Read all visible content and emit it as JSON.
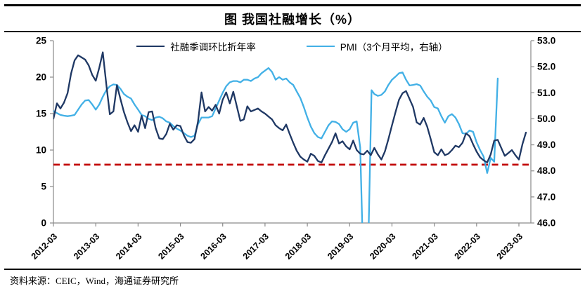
{
  "title": "图 我国社融增长（%）",
  "source": "资料来源：CEIC，Wind，海通证券研究所",
  "colors": {
    "sf_line": "#1f3864",
    "pmi_line": "#42b0e6",
    "reference_line": "#c00000",
    "axis": "#8a8a8a",
    "text": "#000000"
  },
  "legend": [
    {
      "label": "社融季调环比折年率",
      "color": "#1f3864"
    },
    {
      "label": "PMI（3个月平均，右轴）",
      "color": "#42b0e6"
    }
  ],
  "chart_data": {
    "type": "line",
    "title": "图 我国社融增长（%）",
    "x_unit": "months since 2012-03",
    "x_tick_labels": [
      "2012-03",
      "2013-03",
      "2014-03",
      "2015-03",
      "2016-03",
      "2017-03",
      "2018-03",
      "2019-03",
      "2020-03",
      "2021-03",
      "2022-03",
      "2023-03"
    ],
    "x_tick_interval_months": 12,
    "left_axis": {
      "min": 0,
      "max": 25,
      "ticks": [
        0,
        5,
        10,
        15,
        20,
        25
      ],
      "series": "社融季调环比折年率"
    },
    "right_axis": {
      "min": 46,
      "max": 53,
      "ticks": [
        46,
        47,
        48,
        49,
        50,
        51,
        52,
        53
      ],
      "decimals": 1,
      "series": "PMI（3个月平均，右轴）"
    },
    "grid": false,
    "legend_position": "top",
    "reference_line": {
      "axis": "left",
      "value": 8.0,
      "style": "dashed",
      "color": "#c00000"
    },
    "series": [
      {
        "name": "社融季调环比折年率",
        "axis": "left",
        "color": "#1f3864",
        "points": [
          [
            0,
            14.3
          ],
          [
            1,
            16.4
          ],
          [
            2,
            15.7
          ],
          [
            3,
            16.5
          ],
          [
            4,
            17.8
          ],
          [
            5,
            20.5
          ],
          [
            6,
            22.3
          ],
          [
            7,
            23.0
          ],
          [
            8,
            22.7
          ],
          [
            9,
            22.4
          ],
          [
            10,
            21.6
          ],
          [
            11,
            20.3
          ],
          [
            12,
            19.5
          ],
          [
            13,
            21.3
          ],
          [
            14,
            23.4
          ],
          [
            15,
            19.0
          ],
          [
            16,
            14.9
          ],
          [
            17,
            15.3
          ],
          [
            18,
            18.9
          ],
          [
            19,
            17.0
          ],
          [
            20,
            15.2
          ],
          [
            21,
            13.8
          ],
          [
            22,
            12.6
          ],
          [
            23,
            13.4
          ],
          [
            24,
            12.5
          ],
          [
            25,
            14.7
          ],
          [
            26,
            13.0
          ],
          [
            27,
            15.2
          ],
          [
            28,
            15.3
          ],
          [
            29,
            13.0
          ],
          [
            30,
            11.6
          ],
          [
            31,
            11.5
          ],
          [
            32,
            12.2
          ],
          [
            33,
            13.6
          ],
          [
            34,
            12.8
          ],
          [
            35,
            13.4
          ],
          [
            36,
            13.3
          ],
          [
            37,
            12.0
          ],
          [
            38,
            11.1
          ],
          [
            39,
            11.0
          ],
          [
            40,
            11.5
          ],
          [
            41,
            13.9
          ],
          [
            42,
            17.9
          ],
          [
            43,
            15.3
          ],
          [
            44,
            15.9
          ],
          [
            45,
            15.4
          ],
          [
            46,
            16.2
          ],
          [
            47,
            15.0
          ],
          [
            48,
            16.9
          ],
          [
            49,
            17.9
          ],
          [
            50,
            16.4
          ],
          [
            51,
            18.0
          ],
          [
            52,
            16.0
          ],
          [
            53,
            14.0
          ],
          [
            54,
            14.2
          ],
          [
            55,
            16.0
          ],
          [
            56,
            15.3
          ],
          [
            57,
            15.5
          ],
          [
            58,
            15.7
          ],
          [
            59,
            15.3
          ],
          [
            60,
            15.0
          ],
          [
            61,
            14.6
          ],
          [
            62,
            14.2
          ],
          [
            63,
            13.4
          ],
          [
            64,
            13.0
          ],
          [
            65,
            12.7
          ],
          [
            66,
            13.5
          ],
          [
            67,
            12.2
          ],
          [
            68,
            11.0
          ],
          [
            69,
            9.9
          ],
          [
            70,
            9.1
          ],
          [
            71,
            8.7
          ],
          [
            72,
            8.4
          ],
          [
            73,
            9.5
          ],
          [
            74,
            9.2
          ],
          [
            75,
            8.5
          ],
          [
            76,
            8.3
          ],
          [
            77,
            9.3
          ],
          [
            78,
            10.2
          ],
          [
            79,
            11.1
          ],
          [
            80,
            12.3
          ],
          [
            81,
            10.9
          ],
          [
            82,
            11.2
          ],
          [
            83,
            10.5
          ],
          [
            84,
            10.1
          ],
          [
            85,
            11.3
          ],
          [
            86,
            10.0
          ],
          [
            87,
            9.5
          ],
          [
            88,
            9.4
          ],
          [
            89,
            9.9
          ],
          [
            90,
            9.3
          ],
          [
            91,
            10.3
          ],
          [
            92,
            9.4
          ],
          [
            93,
            8.7
          ],
          [
            94,
            9.8
          ],
          [
            95,
            11.5
          ],
          [
            96,
            13.4
          ],
          [
            97,
            15.2
          ],
          [
            98,
            16.9
          ],
          [
            99,
            17.8
          ],
          [
            100,
            18.1
          ],
          [
            101,
            17.0
          ],
          [
            102,
            15.9
          ],
          [
            103,
            13.8
          ],
          [
            104,
            13.5
          ],
          [
            105,
            14.4
          ],
          [
            106,
            13.2
          ],
          [
            107,
            11.5
          ],
          [
            108,
            9.7
          ],
          [
            109,
            9.3
          ],
          [
            110,
            10.1
          ],
          [
            111,
            9.3
          ],
          [
            112,
            9.5
          ],
          [
            113,
            10.0
          ],
          [
            114,
            10.6
          ],
          [
            115,
            10.4
          ],
          [
            116,
            11.0
          ],
          [
            117,
            12.3
          ],
          [
            118,
            11.9
          ],
          [
            119,
            10.8
          ],
          [
            120,
            9.8
          ],
          [
            121,
            9.0
          ],
          [
            122,
            8.6
          ],
          [
            123,
            8.3
          ],
          [
            124,
            9.4
          ],
          [
            125,
            11.3
          ],
          [
            126,
            11.4
          ],
          [
            127,
            10.3
          ],
          [
            128,
            9.2
          ],
          [
            129,
            9.6
          ],
          [
            130,
            10.0
          ],
          [
            131,
            9.3
          ],
          [
            132,
            8.7
          ],
          [
            133,
            10.8
          ],
          [
            134,
            12.4
          ]
        ]
      },
      {
        "name": "PMI（3个月平均，右轴）",
        "axis": "right",
        "color": "#42b0e6",
        "points": [
          [
            0,
            50.3
          ],
          [
            1,
            50.22
          ],
          [
            2,
            50.15
          ],
          [
            3,
            50.12
          ],
          [
            4,
            50.1
          ],
          [
            5,
            50.12
          ],
          [
            6,
            50.15
          ],
          [
            7,
            50.35
          ],
          [
            8,
            50.55
          ],
          [
            9,
            50.7
          ],
          [
            10,
            50.72
          ],
          [
            11,
            50.55
          ],
          [
            12,
            50.35
          ],
          [
            13,
            50.55
          ],
          [
            14,
            50.85
          ],
          [
            15,
            51.1
          ],
          [
            16,
            51.25
          ],
          [
            17,
            51.32
          ],
          [
            18,
            51.3
          ],
          [
            19,
            51.15
          ],
          [
            20,
            50.95
          ],
          [
            21,
            50.85
          ],
          [
            22,
            50.78
          ],
          [
            23,
            50.55
          ],
          [
            24,
            50.35
          ],
          [
            25,
            50.15
          ],
          [
            26,
            50.1
          ],
          [
            27,
            50.0
          ],
          [
            28,
            49.95
          ],
          [
            29,
            50.05
          ],
          [
            30,
            50.08
          ],
          [
            31,
            50.02
          ],
          [
            32,
            49.9
          ],
          [
            33,
            49.85
          ],
          [
            34,
            49.72
          ],
          [
            35,
            49.62
          ],
          [
            36,
            49.55
          ],
          [
            37,
            49.45
          ],
          [
            38,
            49.35
          ],
          [
            39,
            49.3
          ],
          [
            40,
            49.35
          ],
          [
            41,
            49.8
          ],
          [
            42,
            50.05
          ],
          [
            43,
            50.05
          ],
          [
            44,
            50.05
          ],
          [
            45,
            50.1
          ],
          [
            46,
            50.4
          ],
          [
            47,
            50.7
          ],
          [
            48,
            51.0
          ],
          [
            49,
            51.25
          ],
          [
            50,
            51.4
          ],
          [
            51,
            51.45
          ],
          [
            52,
            51.45
          ],
          [
            53,
            51.4
          ],
          [
            54,
            51.5
          ],
          [
            55,
            51.5
          ],
          [
            56,
            51.45
          ],
          [
            57,
            51.55
          ],
          [
            58,
            51.6
          ],
          [
            59,
            51.75
          ],
          [
            60,
            51.85
          ],
          [
            61,
            51.95
          ],
          [
            62,
            51.8
          ],
          [
            63,
            51.5
          ],
          [
            64,
            51.6
          ],
          [
            65,
            51.5
          ],
          [
            66,
            51.55
          ],
          [
            67,
            51.4
          ],
          [
            68,
            51.3
          ],
          [
            69,
            51.05
          ],
          [
            70,
            50.8
          ],
          [
            71,
            50.45
          ],
          [
            72,
            50.05
          ],
          [
            73,
            49.7
          ],
          [
            74,
            49.45
          ],
          [
            75,
            49.3
          ],
          [
            76,
            49.25
          ],
          [
            77,
            49.5
          ],
          [
            78,
            49.75
          ],
          [
            79,
            49.9
          ],
          [
            80,
            49.88
          ],
          [
            81,
            49.8
          ],
          [
            82,
            49.6
          ],
          [
            83,
            49.5
          ],
          [
            84,
            49.6
          ],
          [
            85,
            49.85
          ],
          [
            86,
            49.9
          ],
          [
            87,
            48.9
          ],
          [
            87.8,
            44.8
          ],
          [
            88.6,
            45.6
          ],
          [
            89.2,
            44.6
          ],
          [
            90.2,
            51.1
          ],
          [
            91,
            50.95
          ],
          [
            92,
            50.88
          ],
          [
            93,
            50.92
          ],
          [
            94,
            51.05
          ],
          [
            95,
            51.3
          ],
          [
            96,
            51.5
          ],
          [
            97,
            51.62
          ],
          [
            98,
            51.75
          ],
          [
            99,
            51.78
          ],
          [
            100,
            51.5
          ],
          [
            101,
            51.28
          ],
          [
            102,
            51.3
          ],
          [
            103,
            51.33
          ],
          [
            104,
            51.28
          ],
          [
            105,
            51.05
          ],
          [
            106,
            50.85
          ],
          [
            107,
            50.7
          ],
          [
            108,
            50.45
          ],
          [
            109,
            50.4
          ],
          [
            110,
            50.1
          ],
          [
            111,
            49.85
          ],
          [
            112,
            50.1
          ],
          [
            113,
            50.18
          ],
          [
            114,
            50.05
          ],
          [
            115,
            49.8
          ],
          [
            116,
            49.45
          ],
          [
            117,
            49.42
          ],
          [
            118,
            49.55
          ],
          [
            119,
            49.5
          ],
          [
            120,
            49.1
          ],
          [
            121,
            48.8
          ],
          [
            122,
            48.55
          ],
          [
            123,
            47.92
          ],
          [
            124,
            48.5
          ],
          [
            125,
            48.35
          ],
          [
            126,
            51.55
          ]
        ]
      }
    ]
  }
}
